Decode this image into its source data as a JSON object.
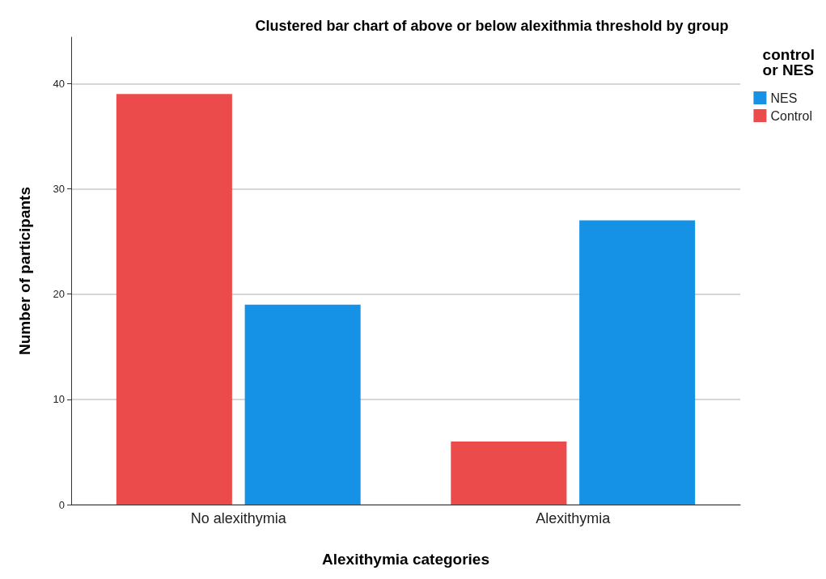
{
  "chart_data": {
    "type": "bar",
    "title": "Clustered bar chart of above or below alexithmia threshold by group",
    "xlabel": "Alexithymia categories",
    "ylabel": "Number of participants",
    "legend_title": "control\nor NES",
    "categories": [
      "No alexithymia",
      "Alexithymia"
    ],
    "series": [
      {
        "name": "Control",
        "color": "#ec4b4b",
        "values": [
          39,
          6
        ]
      },
      {
        "name": "NES",
        "color": "#1591e6",
        "values": [
          19,
          27
        ]
      }
    ],
    "ylim": [
      0,
      44.4
    ],
    "yticks": [
      0,
      10,
      20,
      30,
      40
    ],
    "grid": "y",
    "legend": "top right"
  }
}
